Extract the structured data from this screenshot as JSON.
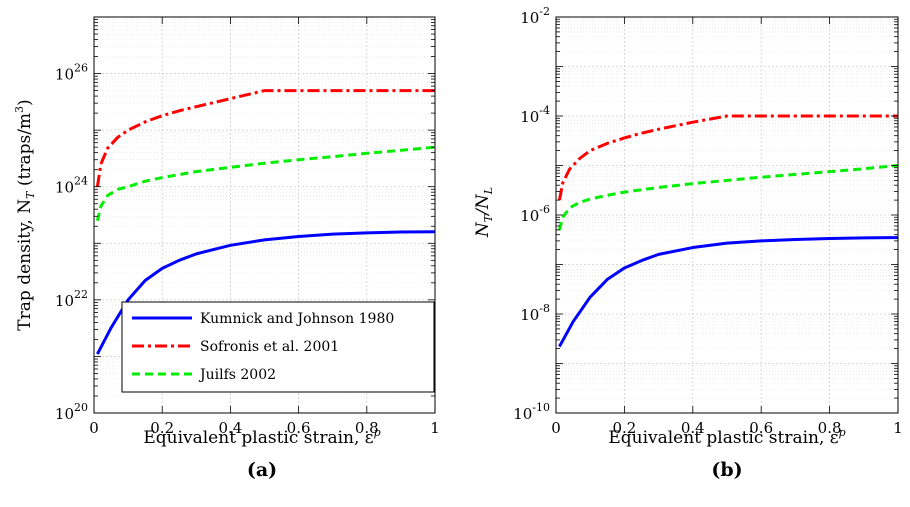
{
  "chart_data": [
    {
      "type": "line",
      "panel_label": "(a)",
      "xlabel": "Equivalent plastic strain, ε",
      "xlabel_sup": "p",
      "ylabel": "Trap density, N",
      "ylabel_sub": "T",
      "ylabel_tail": " (traps/m",
      "ylabel_sup": "3",
      "ylabel_end": ")",
      "xlim": [
        0,
        1
      ],
      "ylim": [
        1e+20,
        1e+27
      ],
      "yscale": "log",
      "grid": true,
      "x_ticks": [
        "0",
        "0.2",
        "0.4",
        "0.6",
        "0.8",
        "1"
      ],
      "y_ticks": [
        {
          "base": "10",
          "exp": "20"
        },
        {
          "base": "10",
          "exp": "22"
        },
        {
          "base": "10",
          "exp": "24"
        },
        {
          "base": "10",
          "exp": "26"
        }
      ],
      "legend_position": "bottom-right",
      "series": [
        {
          "name": "Kumnick and Johnson 1980",
          "color": "#0000ff",
          "style": "solid",
          "x": [
            0.01,
            0.05,
            0.1,
            0.15,
            0.2,
            0.25,
            0.3,
            0.4,
            0.5,
            0.6,
            0.7,
            0.8,
            0.9,
            1.0
          ],
          "y": [
            1.1e+21,
            3.2e+21,
            1e+22,
            2.2e+22,
            3.6e+22,
            5e+22,
            6.5e+22,
            9.2e+22,
            1.15e+23,
            1.32e+23,
            1.45e+23,
            1.53e+23,
            1.58e+23,
            1.6e+23
          ]
        },
        {
          "name": "Sofronis et al. 2001",
          "color": "#ff0000",
          "style": "dashdot",
          "x": [
            0.01,
            0.02,
            0.04,
            0.07,
            0.1,
            0.15,
            0.2,
            0.25,
            0.3,
            0.4,
            0.5,
            0.6,
            0.7,
            0.8,
            0.9,
            1.0
          ],
          "y": [
            1e+24,
            2.5e+24,
            4.8e+24,
            7.5e+24,
            1e+25,
            1.4e+25,
            1.8e+25,
            2.2e+25,
            2.6e+25,
            3.6e+25,
            5e+25,
            5e+25,
            5e+25,
            5e+25,
            5e+25,
            5e+25
          ]
        },
        {
          "name": "Juilfs 2002",
          "color": "#00ee00",
          "style": "dashed",
          "x": [
            0.01,
            0.02,
            0.04,
            0.07,
            0.1,
            0.15,
            0.2,
            0.3,
            0.4,
            0.5,
            0.6,
            0.7,
            0.8,
            0.9,
            1.0
          ],
          "y": [
            2.5e+23,
            4.5e+23,
            7e+23,
            9e+23,
            1e+24,
            1.25e+24,
            1.45e+24,
            1.85e+24,
            2.2e+24,
            2.6e+24,
            3e+24,
            3.4e+24,
            3.9e+24,
            4.4e+24,
            5e+24
          ]
        }
      ]
    },
    {
      "type": "line",
      "panel_label": "(b)",
      "xlabel": "Equivalent plastic strain, ε",
      "xlabel_sup": "p",
      "ylabel_parts": [
        "N",
        "T",
        "/N",
        "L"
      ],
      "xlim": [
        0,
        1
      ],
      "ylim": [
        1e-10,
        0.01
      ],
      "yscale": "log",
      "grid": true,
      "x_ticks": [
        "0",
        "0.2",
        "0.4",
        "0.6",
        "0.8",
        "1"
      ],
      "y_ticks": [
        {
          "base": "10",
          "exp": "-10"
        },
        {
          "base": "10",
          "exp": "-8"
        },
        {
          "base": "10",
          "exp": "-6"
        },
        {
          "base": "10",
          "exp": "-4"
        },
        {
          "base": "10",
          "exp": "-2"
        }
      ],
      "series": [
        {
          "color": "#0000ff",
          "style": "solid",
          "x": [
            0.01,
            0.05,
            0.1,
            0.15,
            0.2,
            0.25,
            0.3,
            0.4,
            0.5,
            0.6,
            0.7,
            0.8,
            0.9,
            1.0
          ],
          "y": [
            2.2e-09,
            7e-09,
            2.2e-08,
            5e-08,
            8.5e-08,
            1.2e-07,
            1.6e-07,
            2.2e-07,
            2.7e-07,
            3e-07,
            3.2e-07,
            3.35e-07,
            3.45e-07,
            3.5e-07
          ]
        },
        {
          "color": "#ff0000",
          "style": "dashdot",
          "x": [
            0.01,
            0.02,
            0.04,
            0.07,
            0.1,
            0.15,
            0.2,
            0.25,
            0.3,
            0.4,
            0.5,
            0.6,
            0.7,
            0.8,
            0.9,
            1.0
          ],
          "y": [
            2e-06,
            4.5e-06,
            8.5e-06,
            1.4e-05,
            2e-05,
            2.8e-05,
            3.6e-05,
            4.5e-05,
            5.4e-05,
            7.5e-05,
            0.0001,
            0.0001,
            0.0001,
            0.0001,
            0.0001,
            0.0001
          ]
        },
        {
          "color": "#00ee00",
          "style": "dashed",
          "x": [
            0.01,
            0.02,
            0.04,
            0.07,
            0.1,
            0.15,
            0.2,
            0.3,
            0.4,
            0.5,
            0.6,
            0.7,
            0.8,
            0.9,
            1.0
          ],
          "y": [
            5e-07,
            9e-07,
            1.4e-06,
            1.8e-06,
            2.1e-06,
            2.5e-06,
            2.9e-06,
            3.6e-06,
            4.3e-06,
            5e-06,
            5.8e-06,
            6.6e-06,
            7.5e-06,
            8.6e-06,
            1e-05
          ]
        }
      ]
    }
  ]
}
